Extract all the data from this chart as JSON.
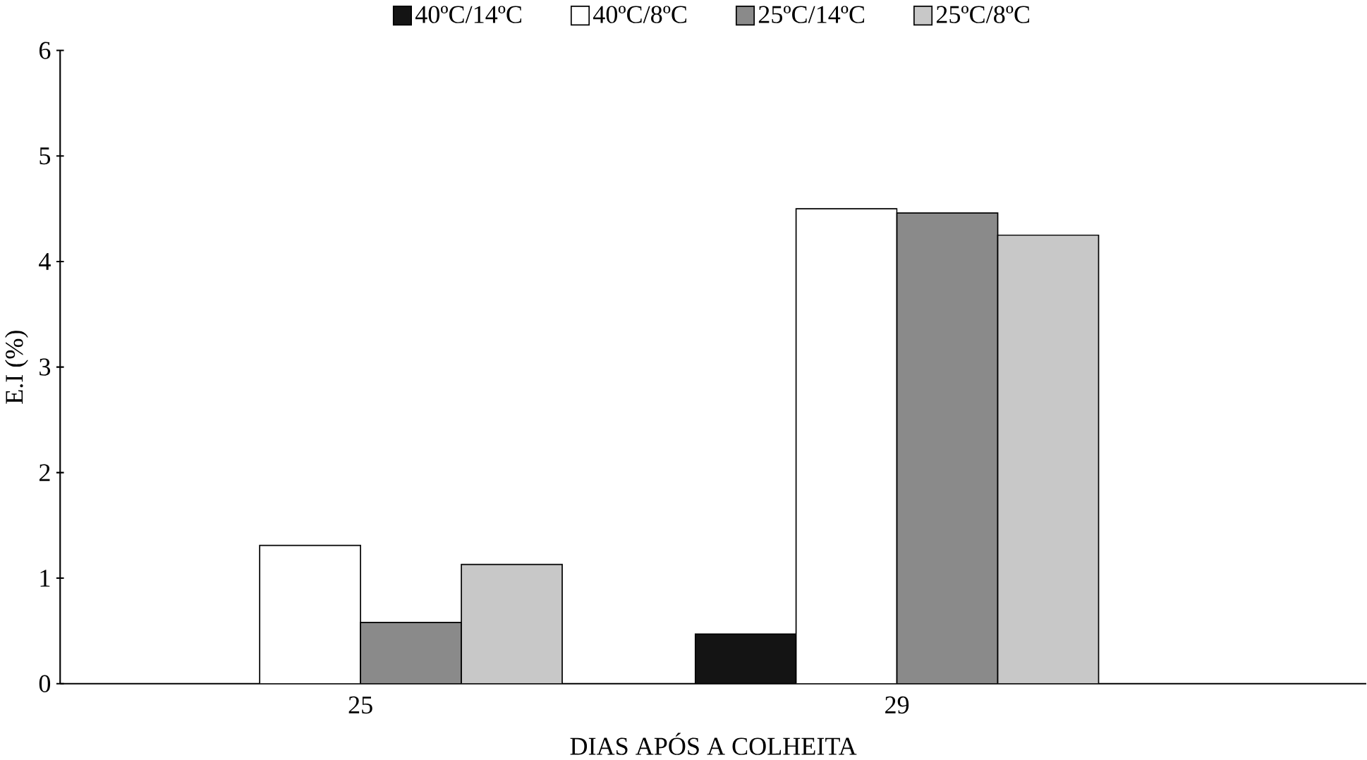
{
  "chart_data": {
    "type": "bar",
    "xlabel": "DIAS APÓS A COLHEITA",
    "ylabel": "E.I  (%)",
    "categories": [
      "25",
      "29"
    ],
    "series": [
      {
        "name": "40ºC/14ºC",
        "color": "#141414",
        "values": [
          0,
          0.47
        ]
      },
      {
        "name": "40ºC/8ºC",
        "color": "#ffffff",
        "values": [
          1.31,
          4.5
        ]
      },
      {
        "name": "25ºC/14ºC",
        "color": "#8a8a8a",
        "values": [
          0.58,
          4.46
        ]
      },
      {
        "name": "25ºC/8ºC",
        "color": "#c8c8c8",
        "values": [
          1.13,
          4.25
        ]
      }
    ],
    "ylim": [
      0,
      6
    ],
    "yticks": [
      0,
      1,
      2,
      3,
      4,
      5,
      6
    ],
    "legend": "top",
    "grid": false
  }
}
